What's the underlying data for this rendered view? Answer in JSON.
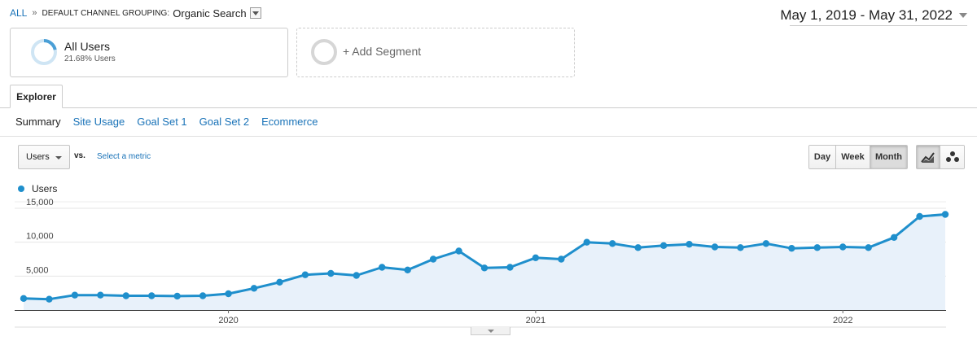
{
  "breadcrumb": {
    "root": "ALL",
    "separator": "»",
    "dimension": "DEFAULT CHANNEL GROUPING:",
    "value": "Organic Search"
  },
  "date_range": "May 1, 2019 - May 31, 2022",
  "segments": {
    "primary": {
      "name": "All Users",
      "subtitle": "21.68% Users",
      "share": 0.2168,
      "color": "#4a9fd6"
    },
    "add_label": "+ Add Segment"
  },
  "tabs": {
    "explorer": "Explorer"
  },
  "subtabs": [
    "Summary",
    "Site Usage",
    "Goal Set 1",
    "Goal Set 2",
    "Ecommerce"
  ],
  "metric": {
    "selected": "Users",
    "vs": "vs.",
    "select_metric": "Select a metric"
  },
  "period_buttons": {
    "day": "Day",
    "week": "Week",
    "month": "Month",
    "active": "Month"
  },
  "view_buttons": {
    "line_icon": "line-chart-icon",
    "motion_icon": "motion-chart-icon"
  },
  "chart_data": {
    "type": "area",
    "series": [
      {
        "name": "Users",
        "color": "#1f8fcc",
        "x": [
          "2019-05",
          "2019-06",
          "2019-07",
          "2019-08",
          "2019-09",
          "2019-10",
          "2019-11",
          "2019-12",
          "2020-01",
          "2020-02",
          "2020-03",
          "2020-04",
          "2020-05",
          "2020-06",
          "2020-07",
          "2020-08",
          "2020-09",
          "2020-10",
          "2020-11",
          "2020-12",
          "2021-01",
          "2021-02",
          "2021-03",
          "2021-04",
          "2021-05",
          "2021-06",
          "2021-07",
          "2021-08",
          "2021-09",
          "2021-10",
          "2021-11",
          "2021-12",
          "2022-01",
          "2022-02",
          "2022-03",
          "2022-04",
          "2022-05"
        ],
        "values": [
          1700,
          1600,
          2200,
          2200,
          2100,
          2100,
          2050,
          2100,
          2400,
          3200,
          4100,
          5200,
          5400,
          5100,
          6300,
          5900,
          7500,
          8700,
          6200,
          6300,
          7700,
          7500,
          10000,
          9800,
          9200,
          9500,
          9700,
          9300,
          9200,
          9800,
          9100,
          9200,
          9300,
          9200,
          10700,
          13800,
          14100
        ]
      }
    ],
    "x_ticks": [
      "2020",
      "2021",
      "2022"
    ],
    "y_ticks": [
      {
        "value": 5000,
        "label": "5,000"
      },
      {
        "value": 10000,
        "label": "10,000"
      },
      {
        "value": 15000,
        "label": "15,000"
      }
    ],
    "ylim": [
      0,
      15000
    ],
    "grid": true,
    "fill_color": "#e8f1fa"
  }
}
